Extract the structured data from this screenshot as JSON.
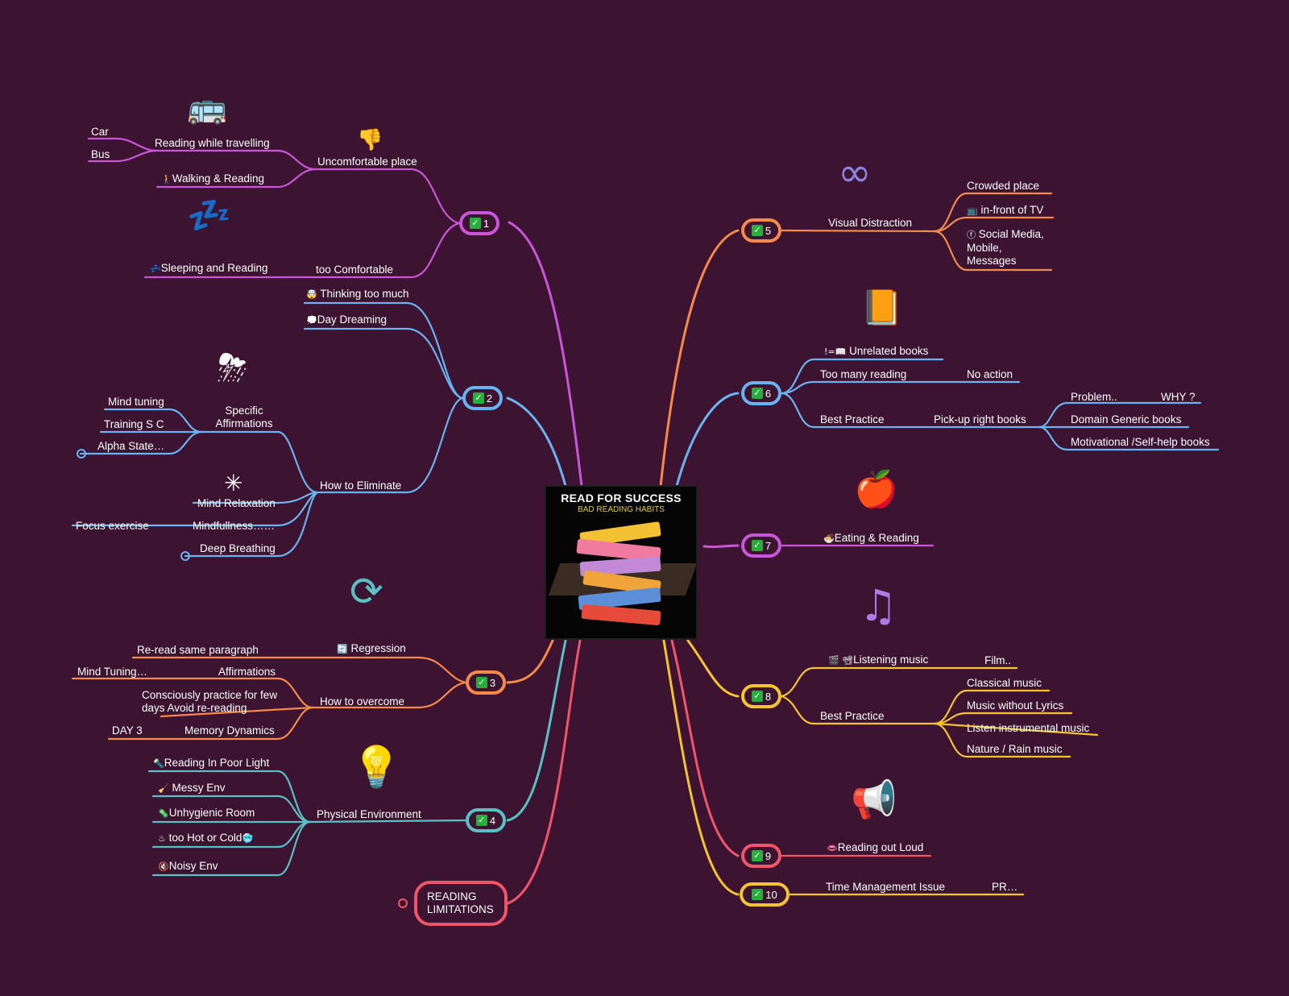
{
  "central": {
    "title": "READ FOR SUCCESS",
    "subtitle": "BAD READING HABITS"
  },
  "colors": {
    "background": "#3c1330",
    "purple": "#c956d9",
    "blue": "#6ab3f2",
    "orange": "#f58a4a",
    "teal": "#5ac0c4",
    "red": "#f0566a",
    "yellow": "#f5c431"
  },
  "badges": {
    "b1": "1",
    "b2": "2",
    "b3": "3",
    "b4": "4",
    "b5": "5",
    "b6": "6",
    "b7": "7",
    "b8": "8",
    "b9": "9",
    "b10": "10"
  },
  "limitations": "READING LIMITATIONS",
  "branch1": {
    "uncomfortable": "Uncomfortable place",
    "travelling": "Reading while travelling",
    "car": "Car",
    "bus": "Bus",
    "walking": "Walking & Reading",
    "too_comfortable": "too Comfortable",
    "sleeping": "Sleeping and Reading"
  },
  "branch2": {
    "thinking": "Thinking too much",
    "day_dreaming": "Day Dreaming",
    "eliminate": "How to Eliminate",
    "affirmations": "Specific Affirmations",
    "mind_tuning": "Mind tuning",
    "training": "Training S C",
    "alpha": "Alpha State…",
    "relaxation": "Mind Relaxation",
    "mindfulness": "Mindfullness……",
    "focus": "Focus exercise",
    "breathing": "Deep Breathing"
  },
  "branch3": {
    "regression": "Regression",
    "reread": "Re-read same paragraph",
    "overcome": "How to overcome",
    "affirmations": "Affirmations",
    "mind_tuning": "Mind Tuning…",
    "consciously": "Consciously practice for few days Avoid re-reading",
    "memory": "Memory Dynamics",
    "day3": "DAY 3"
  },
  "branch4": {
    "physical": "Physical Environment",
    "poor_light": "Reading In Poor Light",
    "messy": "Messy Env",
    "unhygienic": "Unhygienic Room",
    "hot_cold": "too Hot or Cold",
    "noisy": "Noisy Env"
  },
  "branch5": {
    "visual": "Visual Distraction",
    "crowded": "Crowded place",
    "tv": "in-front of TV",
    "social": "Social Media, Mobile, Messages"
  },
  "branch6": {
    "unrelated": "Unrelated books",
    "too_many": "Too many reading",
    "no_action": "No action",
    "best_practice": "Best Practice",
    "pickup": "Pick-up right books",
    "problem": "Problem..",
    "why": "WHY ?",
    "domain": "Domain Generic books",
    "motivational": "Motivational /Self-help books"
  },
  "branch7": {
    "eating": "Eating & Reading"
  },
  "branch8": {
    "listening": "Listening music",
    "film": "Film..",
    "best_practice": "Best Practice",
    "classical": "Classical music",
    "no_lyrics": "Music without Lyrics",
    "instrumental": "Listen instrumental music",
    "nature": "Nature / Rain music"
  },
  "branch9": {
    "aloud": "Reading out Loud"
  },
  "branch10": {
    "time": "Time Management Issue",
    "pr": "PR…"
  },
  "icons": [
    "bus-icon",
    "thumbs-down-icon",
    "sleep-cloud-icon",
    "storm-cloud-icon",
    "network-icon",
    "refresh-icon",
    "lightbulb-icon",
    "binoculars-icon",
    "book-icon",
    "apple-icon",
    "music-note-icon",
    "megaphone-icon"
  ]
}
